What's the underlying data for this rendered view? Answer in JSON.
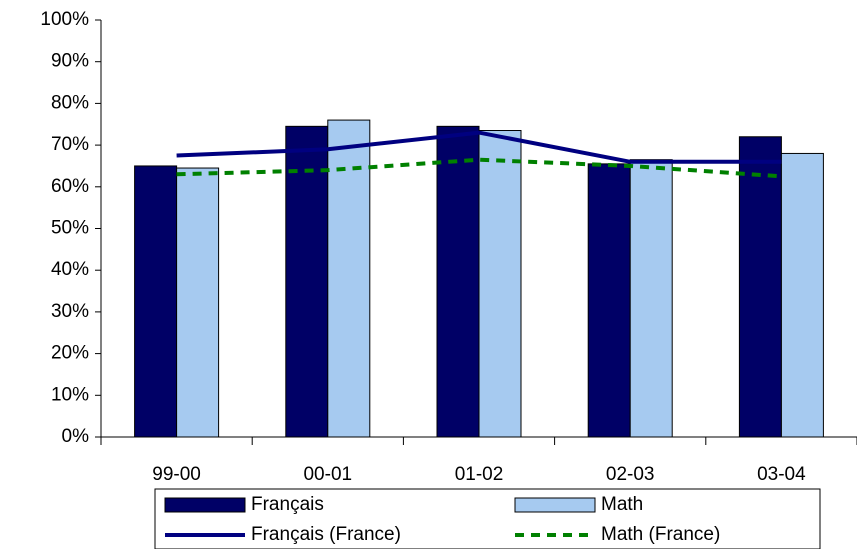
{
  "chart_data": {
    "type": "bar_line",
    "categories": [
      "99-00",
      "00-01",
      "01-02",
      "02-03",
      "03-04"
    ],
    "series": [
      {
        "name": "Français",
        "color": "#000066",
        "kind": "bar",
        "values": [
          65,
          74.5,
          74.5,
          65.5,
          72
        ]
      },
      {
        "name": "Math",
        "color": "#a6caf0",
        "kind": "bar",
        "values": [
          64.5,
          76,
          73.5,
          66.5,
          68
        ]
      },
      {
        "name": "Français (France)",
        "color": "#000080",
        "kind": "line",
        "values": [
          67.5,
          69,
          73,
          66,
          66
        ]
      },
      {
        "name": "Math (France)",
        "color": "#008000",
        "kind": "dashed-line",
        "values": [
          63,
          64,
          66.5,
          65,
          62.5
        ]
      }
    ],
    "ylim": [
      0,
      100
    ],
    "yticks": [
      {
        "value": 0,
        "label": "0%"
      },
      {
        "value": 10,
        "label": "10%"
      },
      {
        "value": 20,
        "label": "20%"
      },
      {
        "value": 30,
        "label": "30%"
      },
      {
        "value": 40,
        "label": "40%"
      },
      {
        "value": 50,
        "label": "50%"
      },
      {
        "value": 60,
        "label": "60%"
      },
      {
        "value": 70,
        "label": "70%"
      },
      {
        "value": 80,
        "label": "80%"
      },
      {
        "value": 90,
        "label": "90%"
      },
      {
        "value": 100,
        "label": "100%"
      }
    ]
  }
}
